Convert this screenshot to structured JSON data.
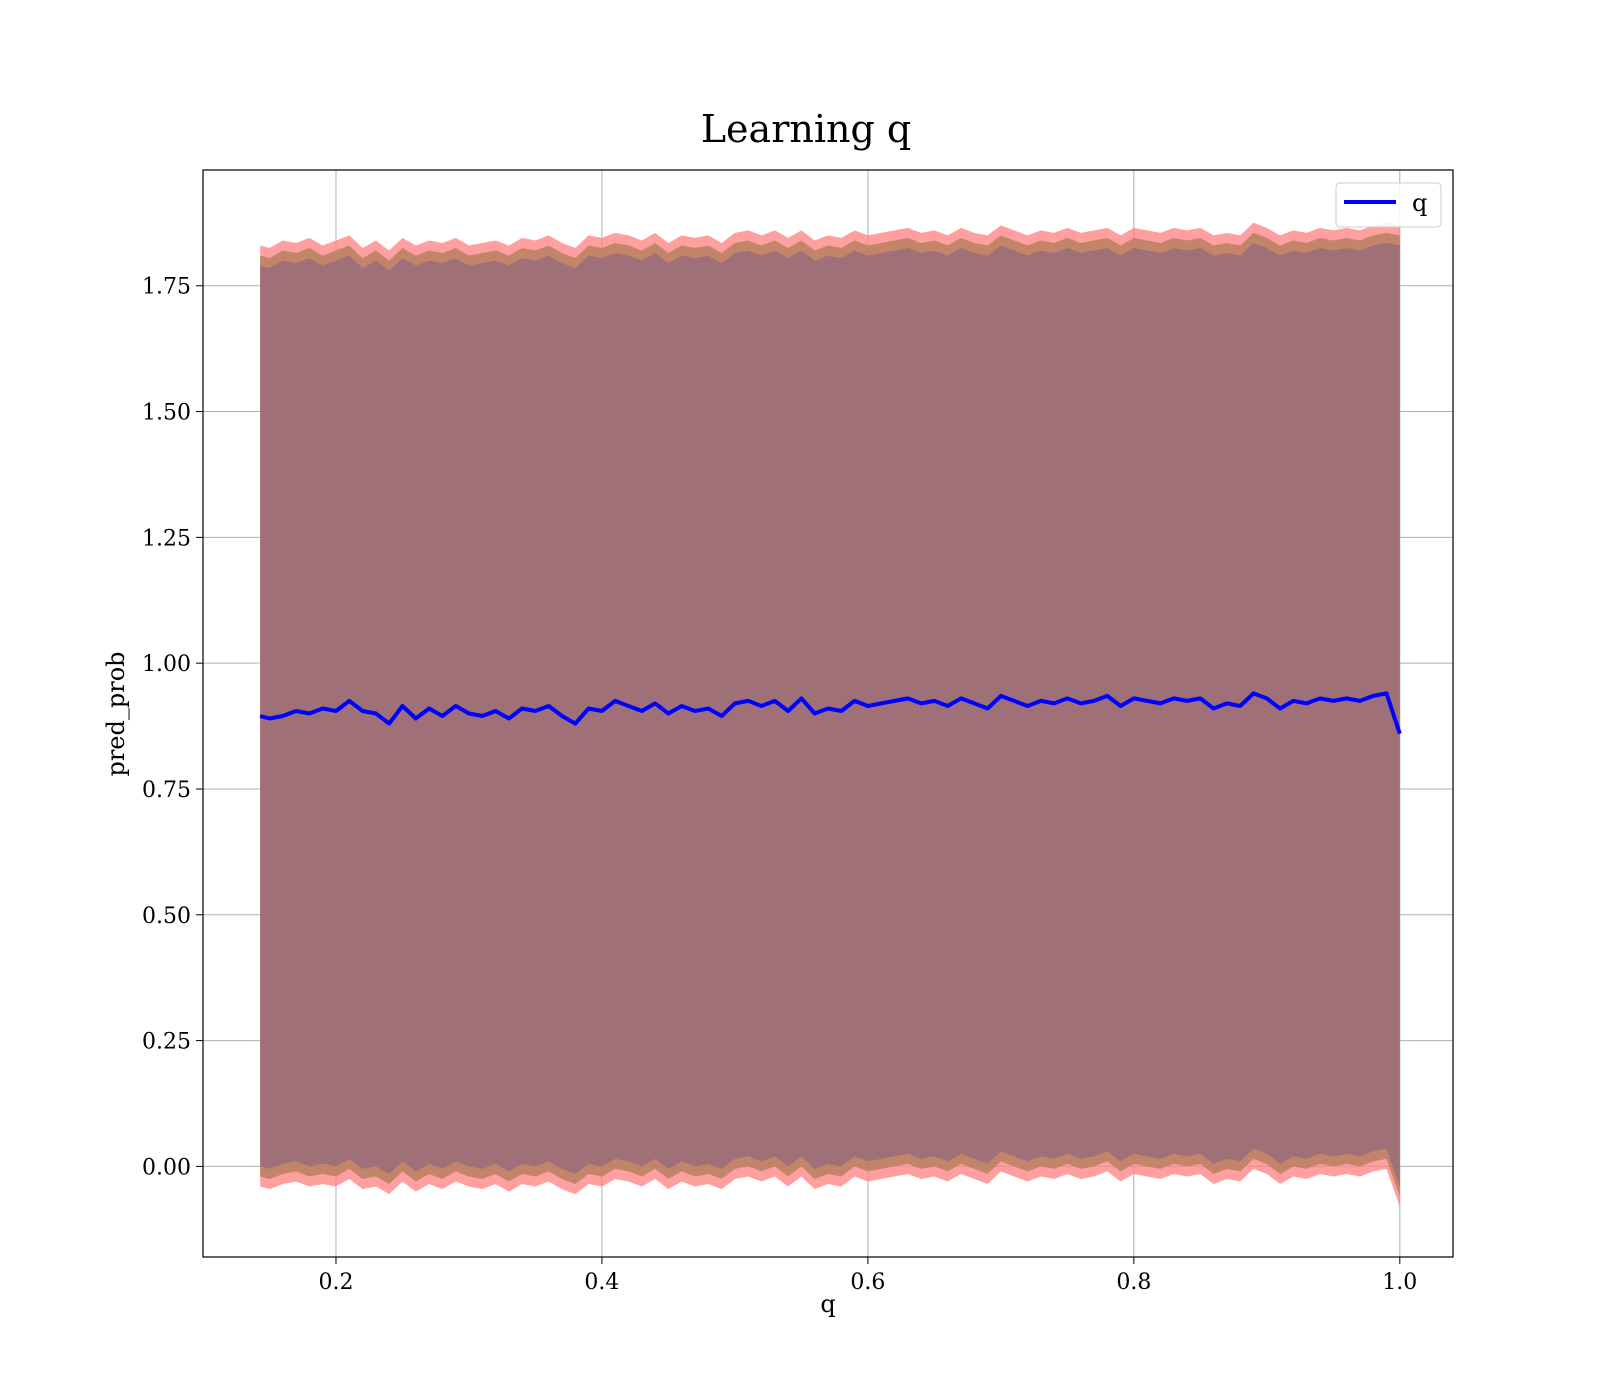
{
  "chart_data": {
    "type": "line",
    "title": "Learning q",
    "xlabel": "q",
    "ylabel": "pred_prob",
    "xlim": [
      0.1,
      1.04
    ],
    "ylim": [
      -0.18,
      1.98
    ],
    "xticks": [
      0.2,
      0.4,
      0.6,
      0.8,
      1.0
    ],
    "xtick_labels": [
      "0.2",
      "0.4",
      "0.6",
      "0.8",
      "1.0"
    ],
    "yticks": [
      0.0,
      0.25,
      0.5,
      0.75,
      1.0,
      1.25,
      1.5,
      1.75
    ],
    "ytick_labels": [
      "0.00",
      "0.25",
      "0.50",
      "0.75",
      "1.00",
      "1.25",
      "1.50",
      "1.75"
    ],
    "grid": true,
    "legend": {
      "placement": "top-right",
      "entries": [
        "q"
      ]
    },
    "colors": {
      "line": "#0000ff",
      "band_outer": "#ff7f7f",
      "band_mid": "#b98060",
      "band_inner": "#a07078"
    },
    "series": [
      {
        "name": "q",
        "x": [
          0.143,
          0.15,
          0.16,
          0.17,
          0.18,
          0.19,
          0.2,
          0.21,
          0.22,
          0.23,
          0.24,
          0.25,
          0.26,
          0.27,
          0.28,
          0.29,
          0.3,
          0.31,
          0.32,
          0.33,
          0.34,
          0.35,
          0.36,
          0.37,
          0.38,
          0.39,
          0.4,
          0.41,
          0.42,
          0.43,
          0.44,
          0.45,
          0.46,
          0.47,
          0.48,
          0.49,
          0.5,
          0.51,
          0.52,
          0.53,
          0.54,
          0.55,
          0.56,
          0.57,
          0.58,
          0.59,
          0.6,
          0.61,
          0.62,
          0.63,
          0.64,
          0.65,
          0.66,
          0.67,
          0.68,
          0.69,
          0.7,
          0.71,
          0.72,
          0.73,
          0.74,
          0.75,
          0.76,
          0.77,
          0.78,
          0.79,
          0.8,
          0.81,
          0.82,
          0.83,
          0.84,
          0.85,
          0.86,
          0.87,
          0.88,
          0.89,
          0.9,
          0.91,
          0.92,
          0.93,
          0.94,
          0.95,
          0.96,
          0.97,
          0.98,
          0.99,
          1.0
        ],
        "values": [
          0.895,
          0.89,
          0.895,
          0.905,
          0.9,
          0.91,
          0.905,
          0.925,
          0.905,
          0.9,
          0.88,
          0.915,
          0.89,
          0.91,
          0.895,
          0.915,
          0.9,
          0.895,
          0.905,
          0.89,
          0.91,
          0.905,
          0.915,
          0.895,
          0.88,
          0.91,
          0.905,
          0.925,
          0.915,
          0.905,
          0.92,
          0.9,
          0.915,
          0.905,
          0.91,
          0.895,
          0.92,
          0.925,
          0.915,
          0.925,
          0.905,
          0.93,
          0.9,
          0.91,
          0.905,
          0.925,
          0.915,
          0.92,
          0.925,
          0.93,
          0.92,
          0.925,
          0.915,
          0.93,
          0.92,
          0.91,
          0.935,
          0.925,
          0.915,
          0.925,
          0.92,
          0.93,
          0.92,
          0.925,
          0.935,
          0.915,
          0.93,
          0.925,
          0.92,
          0.93,
          0.925,
          0.93,
          0.91,
          0.92,
          0.915,
          0.94,
          0.93,
          0.91,
          0.925,
          0.92,
          0.93,
          0.925,
          0.93,
          0.925,
          0.935,
          0.94,
          0.86
        ],
        "upper_outer": [
          1.83,
          1.825,
          1.84,
          1.835,
          1.845,
          1.83,
          1.84,
          1.85,
          1.825,
          1.84,
          1.82,
          1.845,
          1.83,
          1.84,
          1.835,
          1.845,
          1.83,
          1.835,
          1.84,
          1.83,
          1.845,
          1.84,
          1.85,
          1.835,
          1.825,
          1.85,
          1.845,
          1.855,
          1.85,
          1.84,
          1.855,
          1.835,
          1.85,
          1.845,
          1.85,
          1.835,
          1.855,
          1.86,
          1.85,
          1.86,
          1.845,
          1.86,
          1.84,
          1.85,
          1.845,
          1.86,
          1.85,
          1.855,
          1.86,
          1.865,
          1.855,
          1.86,
          1.85,
          1.865,
          1.855,
          1.85,
          1.87,
          1.86,
          1.85,
          1.86,
          1.855,
          1.865,
          1.855,
          1.86,
          1.865,
          1.85,
          1.865,
          1.86,
          1.855,
          1.865,
          1.86,
          1.865,
          1.85,
          1.855,
          1.85,
          1.875,
          1.865,
          1.85,
          1.86,
          1.855,
          1.865,
          1.86,
          1.865,
          1.86,
          1.87,
          1.875,
          1.87
        ],
        "lower_outer": [
          -0.04,
          -0.045,
          -0.035,
          -0.03,
          -0.04,
          -0.035,
          -0.04,
          -0.025,
          -0.045,
          -0.04,
          -0.055,
          -0.03,
          -0.05,
          -0.035,
          -0.045,
          -0.03,
          -0.04,
          -0.045,
          -0.035,
          -0.05,
          -0.035,
          -0.04,
          -0.03,
          -0.045,
          -0.055,
          -0.035,
          -0.04,
          -0.025,
          -0.03,
          -0.04,
          -0.025,
          -0.045,
          -0.03,
          -0.04,
          -0.035,
          -0.045,
          -0.025,
          -0.02,
          -0.03,
          -0.02,
          -0.04,
          -0.02,
          -0.045,
          -0.035,
          -0.04,
          -0.02,
          -0.03,
          -0.025,
          -0.02,
          -0.015,
          -0.025,
          -0.02,
          -0.03,
          -0.015,
          -0.025,
          -0.035,
          -0.01,
          -0.02,
          -0.03,
          -0.02,
          -0.025,
          -0.015,
          -0.025,
          -0.02,
          -0.01,
          -0.03,
          -0.015,
          -0.02,
          -0.025,
          -0.015,
          -0.02,
          -0.015,
          -0.035,
          -0.025,
          -0.03,
          -0.005,
          -0.015,
          -0.035,
          -0.02,
          -0.025,
          -0.015,
          -0.02,
          -0.015,
          -0.02,
          -0.01,
          -0.005,
          -0.08
        ]
      }
    ]
  }
}
